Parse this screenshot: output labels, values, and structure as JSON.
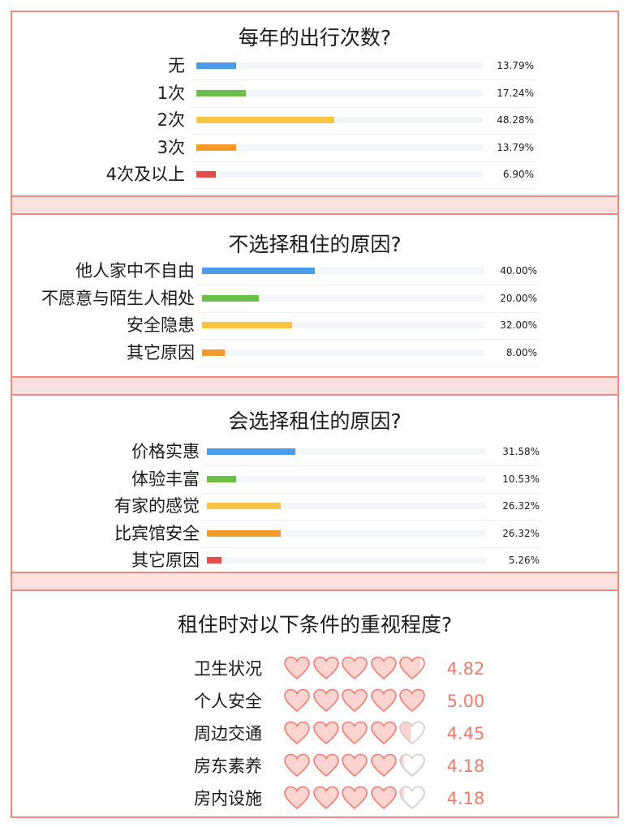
{
  "colors": {
    "border": "#ef8a80",
    "band": "#fbe1df",
    "heart_fill": "#fbd3d0",
    "heart_stroke": "#ef7b6e",
    "rating_text": "#ef7b6e",
    "bar_colors": [
      "#4c9be8",
      "#6cc04a",
      "#f9c443",
      "#f79a2b",
      "#e64c4c"
    ]
  },
  "chart_data": [
    {
      "type": "bar",
      "orientation": "horizontal",
      "title": "每年的出行次数?",
      "categories": [
        "无",
        "1次",
        "2次",
        "3次",
        "4次及以上"
      ],
      "values": [
        13.79,
        17.24,
        48.28,
        13.79,
        6.9
      ],
      "value_labels": [
        "13.79%",
        "17.24%",
        "48.28%",
        "13.79%",
        "6.90%"
      ],
      "xlim": [
        0,
        100
      ]
    },
    {
      "type": "bar",
      "orientation": "horizontal",
      "title": "不选择租住的原因?",
      "categories": [
        "他人家中不自由",
        "不愿意与陌生人相处",
        "安全隐患",
        "其它原因"
      ],
      "values": [
        40.0,
        20.0,
        32.0,
        8.0
      ],
      "value_labels": [
        "40.00%",
        "20.00%",
        "32.00%",
        "8.00%"
      ],
      "xlim": [
        0,
        100
      ]
    },
    {
      "type": "bar",
      "orientation": "horizontal",
      "title": "会选择租住的原因?",
      "categories": [
        "价格实惠",
        "体验丰富",
        "有家的感觉",
        "比宾馆安全",
        "其它原因"
      ],
      "values": [
        31.58,
        10.53,
        26.32,
        26.32,
        5.26
      ],
      "value_labels": [
        "31.58%",
        "10.53%",
        "26.32%",
        "26.32%",
        "5.26%"
      ],
      "xlim": [
        0,
        100
      ]
    },
    {
      "type": "rating",
      "title": "租住时对以下条件的重视程度?",
      "categories": [
        "卫生状况",
        "个人安全",
        "周边交通",
        "房东素养",
        "房内设施"
      ],
      "values": [
        4.82,
        5.0,
        4.45,
        4.18,
        4.18
      ],
      "value_labels": [
        "4.82",
        "5.00",
        "4.45",
        "4.18",
        "4.18"
      ],
      "max": 5
    }
  ]
}
